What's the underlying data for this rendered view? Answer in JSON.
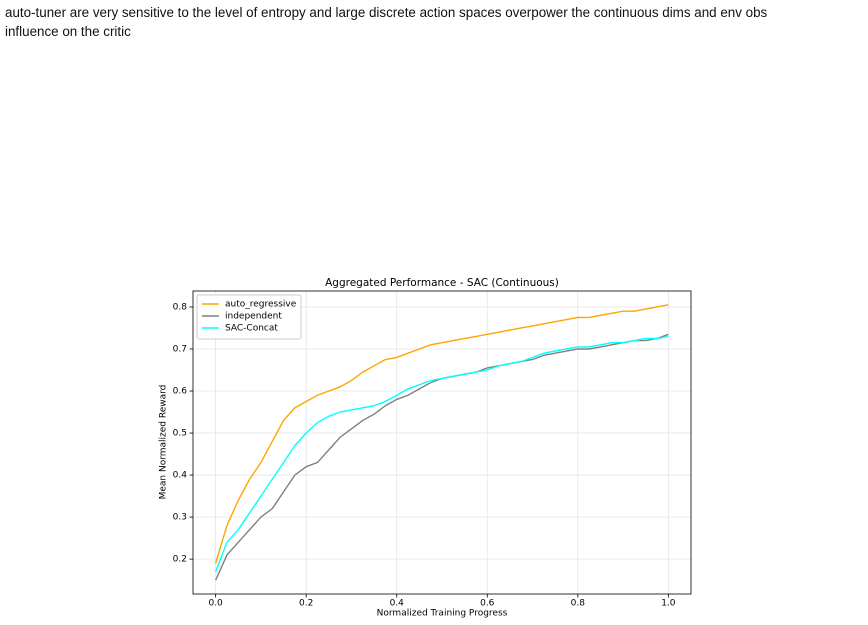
{
  "paragraph_lines": [
    "auto-tuner are very sensitive to the level of entropy and large discrete action spaces overpower the continuous dims and env obs",
    "influence on the critic"
  ],
  "chart_data": {
    "type": "line",
    "title": "Aggregated Performance - SAC (Continuous)",
    "x_label": "Normalized Training Progress",
    "y_label": "Mean Normalized Reward",
    "x": [
      0,
      0.025,
      0.05,
      0.075,
      0.1,
      0.125,
      0.15,
      0.175,
      0.2,
      0.225,
      0.25,
      0.275,
      0.3,
      0.325,
      0.35,
      0.375,
      0.4,
      0.425,
      0.45,
      0.475,
      0.5,
      0.525,
      0.55,
      0.575,
      0.6,
      0.625,
      0.65,
      0.675,
      0.7,
      0.725,
      0.75,
      0.775,
      0.8,
      0.825,
      0.85,
      0.875,
      0.9,
      0.925,
      0.95,
      0.975,
      1.0
    ],
    "series": [
      {
        "name": "auto_regressive",
        "color": "#ffa500",
        "values": [
          0.19,
          0.28,
          0.34,
          0.39,
          0.43,
          0.48,
          0.53,
          0.56,
          0.575,
          0.59,
          0.6,
          0.61,
          0.625,
          0.645,
          0.66,
          0.675,
          0.68,
          0.69,
          0.7,
          0.71,
          0.715,
          0.72,
          0.725,
          0.73,
          0.735,
          0.74,
          0.745,
          0.75,
          0.755,
          0.76,
          0.765,
          0.77,
          0.775,
          0.775,
          0.78,
          0.785,
          0.79,
          0.79,
          0.795,
          0.8,
          0.805
        ]
      },
      {
        "name": "independent",
        "color": "#808080",
        "values": [
          0.15,
          0.21,
          0.24,
          0.27,
          0.3,
          0.32,
          0.36,
          0.4,
          0.42,
          0.43,
          0.46,
          0.49,
          0.51,
          0.53,
          0.545,
          0.565,
          0.58,
          0.59,
          0.605,
          0.62,
          0.63,
          0.635,
          0.64,
          0.645,
          0.655,
          0.66,
          0.665,
          0.67,
          0.675,
          0.685,
          0.69,
          0.695,
          0.7,
          0.7,
          0.705,
          0.71,
          0.715,
          0.72,
          0.72,
          0.725,
          0.735
        ]
      },
      {
        "name": "SAC-Concat",
        "color": "#00ffff",
        "values": [
          0.17,
          0.24,
          0.27,
          0.31,
          0.35,
          0.39,
          0.43,
          0.47,
          0.5,
          0.525,
          0.54,
          0.55,
          0.555,
          0.56,
          0.565,
          0.575,
          0.59,
          0.605,
          0.615,
          0.625,
          0.63,
          0.635,
          0.64,
          0.645,
          0.65,
          0.66,
          0.665,
          0.67,
          0.68,
          0.69,
          0.695,
          0.7,
          0.705,
          0.705,
          0.71,
          0.715,
          0.715,
          0.72,
          0.725,
          0.725,
          0.73
        ]
      }
    ],
    "xlim": [
      -0.05,
      1.05
    ],
    "ylim": [
      0.117,
      0.838
    ],
    "xticks": [
      {
        "value": 0,
        "label": "0.0"
      },
      0.2,
      0.4,
      0.6,
      0.8,
      {
        "value": 1,
        "label": "1.0"
      }
    ],
    "yticks": [
      0.2,
      0.3,
      0.4,
      0.5,
      0.6,
      0.7,
      0.8
    ],
    "grid": true,
    "legend": "upper-left"
  }
}
